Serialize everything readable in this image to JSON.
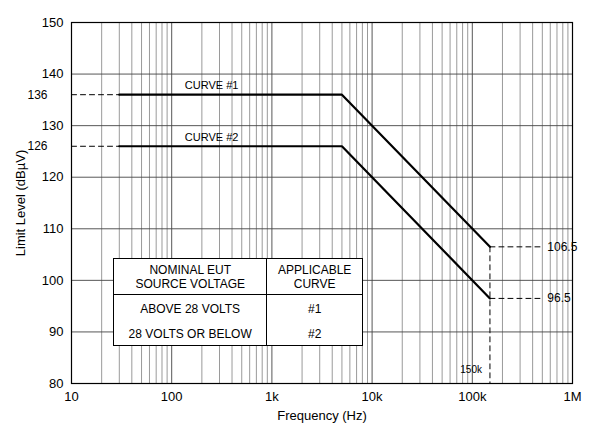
{
  "chart_data": {
    "type": "line",
    "xlabel": "Frequency (Hz)",
    "ylabel": "Limit Level (dBµV)",
    "log": "x",
    "grid": true,
    "xlim": [
      10,
      1000000
    ],
    "xticks": [
      10,
      100,
      {
        "value": 1000,
        "label": "1k"
      },
      {
        "value": 10000,
        "label": "10k"
      },
      {
        "value": 100000,
        "label": "100k"
      },
      {
        "value": 1000000,
        "label": "1M"
      }
    ],
    "xgrid_minor": [
      20,
      30,
      40,
      50,
      60,
      70,
      80,
      90,
      200,
      300,
      400,
      500,
      600,
      700,
      800,
      900,
      2000,
      3000,
      4000,
      5000,
      6000,
      7000,
      8000,
      9000,
      20000,
      30000,
      40000,
      50000,
      60000,
      70000,
      80000,
      90000,
      200000,
      300000,
      400000,
      500000,
      600000,
      700000,
      800000,
      900000
    ],
    "ylim": [
      80,
      150
    ],
    "yticks": [
      80,
      90,
      100,
      110,
      120,
      130,
      140,
      150
    ],
    "series": [
      {
        "color": "#000000",
        "line_style": "solid",
        "x": [
          30,
          5000,
          150000
        ],
        "values": [
          136,
          136,
          106.5
        ]
      },
      {
        "color": "#000000",
        "line_style": "solid",
        "x": [
          30,
          5000,
          150000
        ],
        "values": [
          126,
          126,
          96.5
        ]
      },
      {
        "color": "#000000",
        "line_style": "dashed",
        "x": [
          10,
          30
        ],
        "values": [
          136,
          136
        ]
      },
      {
        "color": "#000000",
        "line_style": "dashed",
        "x": [
          10,
          30
        ],
        "values": [
          126,
          126
        ]
      },
      {
        "color": "#000000",
        "line_style": "dashed",
        "x": [
          150000,
          500000
        ],
        "values": [
          106.5,
          106.5
        ]
      },
      {
        "color": "#000000",
        "line_style": "dashed",
        "x": [
          150000,
          500000
        ],
        "values": [
          96.5,
          96.5
        ]
      },
      {
        "color": "#000000",
        "line_style": "dashed",
        "x": [
          150000,
          150000
        ],
        "values": [
          106.5,
          80
        ]
      }
    ],
    "annotations": [
      {
        "text": "CURVE #1",
        "x": 250,
        "y": 136
      },
      {
        "text": "CURVE #2",
        "x": 250,
        "y": 126
      },
      {
        "text": "136",
        "x": 10,
        "y": 136
      },
      {
        "text": "126",
        "x": 10,
        "y": 126
      },
      {
        "text": "106.5",
        "x": 500000,
        "y": 106.5
      },
      {
        "text": "96.5",
        "x": 500000,
        "y": 96.5
      },
      {
        "text": "150k",
        "x": 150000,
        "y": 80
      }
    ],
    "table": {
      "header": [
        [
          "NOMINAL EUT",
          "SOURCE VOLTAGE"
        ],
        [
          "APPLICABLE",
          "CURVE"
        ]
      ],
      "rows": [
        [
          "ABOVE 28 VOLTS",
          "#1"
        ],
        [
          "28 VOLTS OR BELOW",
          "#2"
        ]
      ]
    }
  }
}
